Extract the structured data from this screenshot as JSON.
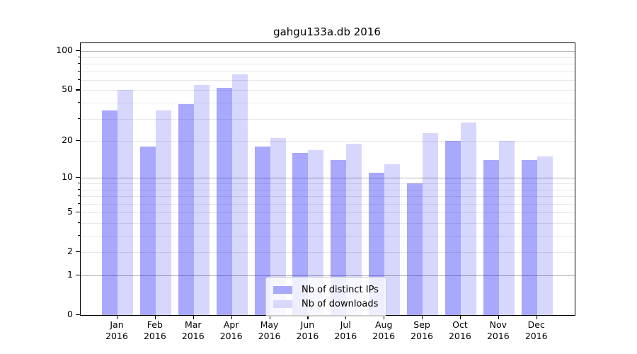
{
  "title": "gahgu133a.db 2016",
  "chart_data": {
    "type": "bar",
    "title": "gahgu133a.db 2016",
    "categories": [
      "Jan",
      "Feb",
      "Mar",
      "Apr",
      "May",
      "Jun",
      "Jul",
      "Aug",
      "Sep",
      "Oct",
      "Nov",
      "Dec"
    ],
    "category_year_label": "2016",
    "series": [
      {
        "name": "Nb of distinct IPs",
        "color": "#0000fa",
        "alpha": 0.34,
        "legend_hex": "#a9a9fc",
        "values": [
          35,
          18,
          39,
          52,
          18,
          16,
          14,
          11,
          9,
          20,
          14,
          14
        ]
      },
      {
        "name": "Nb of downloads",
        "color": "#0000fa",
        "alpha": 0.155,
        "legend_hex": "#d8d8fd",
        "values": [
          50,
          35,
          55,
          66,
          21,
          17,
          19,
          13,
          23,
          28,
          20,
          15
        ]
      }
    ],
    "y_scale": "log1p",
    "ylim": [
      0,
      115
    ],
    "y_ticks": [
      0,
      1,
      2,
      5,
      10,
      20,
      50,
      100
    ],
    "y_major_gridlines": [
      1,
      10,
      100
    ],
    "y_minor_gridlines": [
      2,
      3,
      4,
      5,
      6,
      7,
      8,
      9,
      20,
      30,
      40,
      50,
      60,
      70,
      80,
      90
    ],
    "grid": "horizontal",
    "legend_position": "lower center",
    "colors": {
      "grid_major": "#b0b0b0",
      "grid_minor": "#e7e7e7",
      "axis": "#000000"
    }
  }
}
